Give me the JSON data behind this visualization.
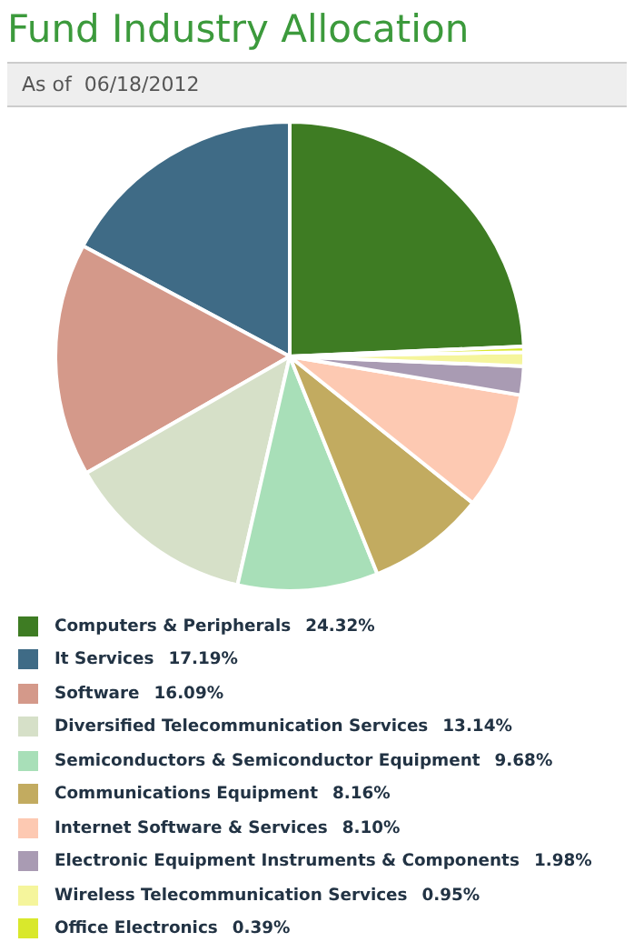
{
  "chart_data": {
    "type": "pie",
    "title": "Fund Industry Allocation",
    "subtitle": "As of  06/18/2012",
    "legend": "bottom",
    "data_labels": true,
    "categories": [
      "Computers & Peripherals",
      "It Services",
      "Software",
      "Diversified Telecommunication Services",
      "Semiconductors & Semiconductor Equipment",
      "Communications Equipment",
      "Internet Software & Services",
      "Electronic Equipment Instruments & Components",
      "Wireless Telecommunication Services",
      "Office Electronics"
    ],
    "values": [
      24.32,
      17.19,
      16.09,
      13.14,
      9.68,
      8.16,
      8.1,
      1.98,
      0.95,
      0.39
    ],
    "value_labels": [
      "24.32%",
      "17.19%",
      "16.09%",
      "13.14%",
      "9.68%",
      "8.16%",
      "8.10%",
      "1.98%",
      "0.95%",
      "0.39%"
    ],
    "colors": [
      "#3e7c23",
      "#3f6b86",
      "#d4998a",
      "#d6e0c8",
      "#a8dfb8",
      "#c2ab60",
      "#fdc9b2",
      "#a99bb3",
      "#f5f59c",
      "#d9e82c"
    ]
  }
}
